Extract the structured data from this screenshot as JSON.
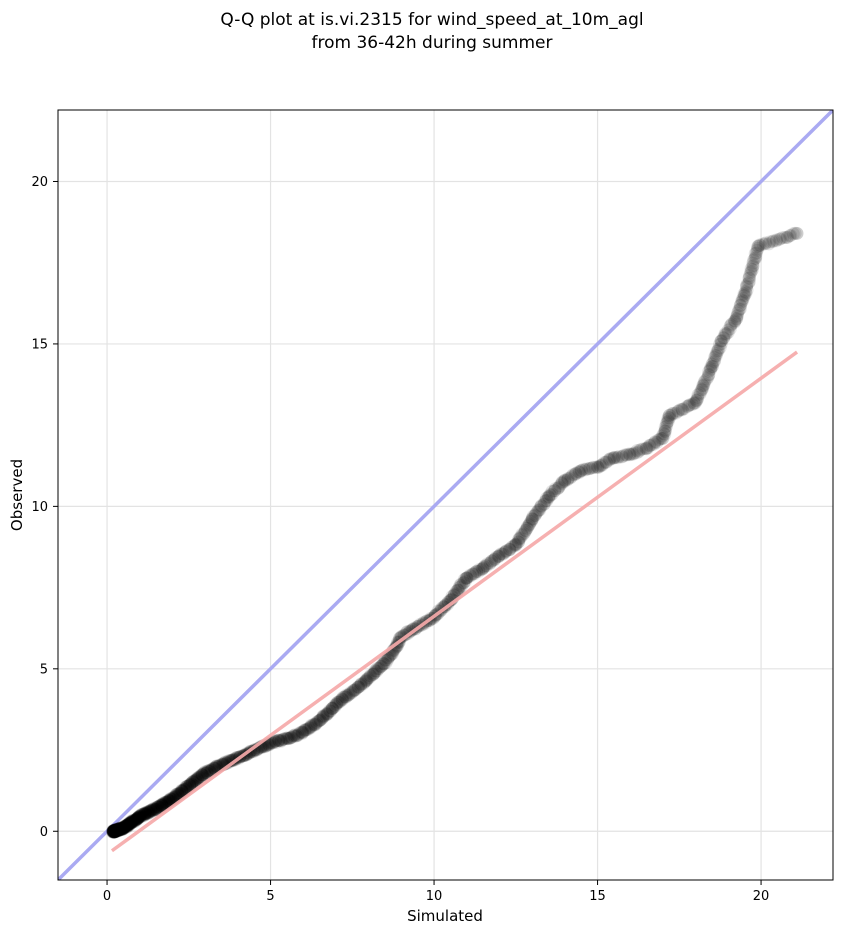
{
  "chart_data": {
    "type": "scatter",
    "title": "Q-Q plot at is.vi.2315 for wind_speed_at_10m_agl",
    "subtitle": "from 36-42h during summer",
    "xlabel": "Simulated",
    "ylabel": "Observed",
    "xlim": [
      -1.5,
      22.2
    ],
    "ylim": [
      -1.5,
      22.2
    ],
    "xticks": [
      0,
      5,
      10,
      15,
      20
    ],
    "yticks": [
      0,
      5,
      10,
      15,
      20
    ],
    "grid": true,
    "reference_line": {
      "color": "#aaaaf2",
      "from": [
        -1.5,
        -1.5
      ],
      "to": [
        22.2,
        22.2
      ]
    },
    "fit_line": {
      "color": "#f5a9a9",
      "from": [
        0.15,
        -0.6
      ],
      "to": [
        21.1,
        14.75
      ]
    },
    "point_color": "#000000",
    "qq_path": [
      [
        0.2,
        0.0
      ],
      [
        0.5,
        0.1
      ],
      [
        1.0,
        0.45
      ],
      [
        1.5,
        0.7
      ],
      [
        2.0,
        1.0
      ],
      [
        2.5,
        1.4
      ],
      [
        3.0,
        1.8
      ],
      [
        3.5,
        2.05
      ],
      [
        4.0,
        2.25
      ],
      [
        4.5,
        2.5
      ],
      [
        5.0,
        2.7
      ],
      [
        5.5,
        2.85
      ],
      [
        6.0,
        3.05
      ],
      [
        6.5,
        3.4
      ],
      [
        7.0,
        3.9
      ],
      [
        7.5,
        4.3
      ],
      [
        8.0,
        4.7
      ],
      [
        8.5,
        5.2
      ],
      [
        8.8,
        5.6
      ],
      [
        9.0,
        6.0
      ],
      [
        9.5,
        6.3
      ],
      [
        10.0,
        6.6
      ],
      [
        10.5,
        7.1
      ],
      [
        11.0,
        7.8
      ],
      [
        11.5,
        8.1
      ],
      [
        12.0,
        8.5
      ],
      [
        12.5,
        8.8
      ],
      [
        13.0,
        9.6
      ],
      [
        13.5,
        10.3
      ],
      [
        14.0,
        10.8
      ],
      [
        14.5,
        11.1
      ],
      [
        15.0,
        11.2
      ],
      [
        15.5,
        11.5
      ],
      [
        16.0,
        11.6
      ],
      [
        16.5,
        11.8
      ],
      [
        17.0,
        12.1
      ],
      [
        17.2,
        12.8
      ],
      [
        18.0,
        13.2
      ],
      [
        18.5,
        14.3
      ],
      [
        18.8,
        15.1
      ],
      [
        19.2,
        15.7
      ],
      [
        19.5,
        16.5
      ],
      [
        19.9,
        18.0
      ],
      [
        21.1,
        18.4
      ]
    ],
    "point_count": 1100
  }
}
